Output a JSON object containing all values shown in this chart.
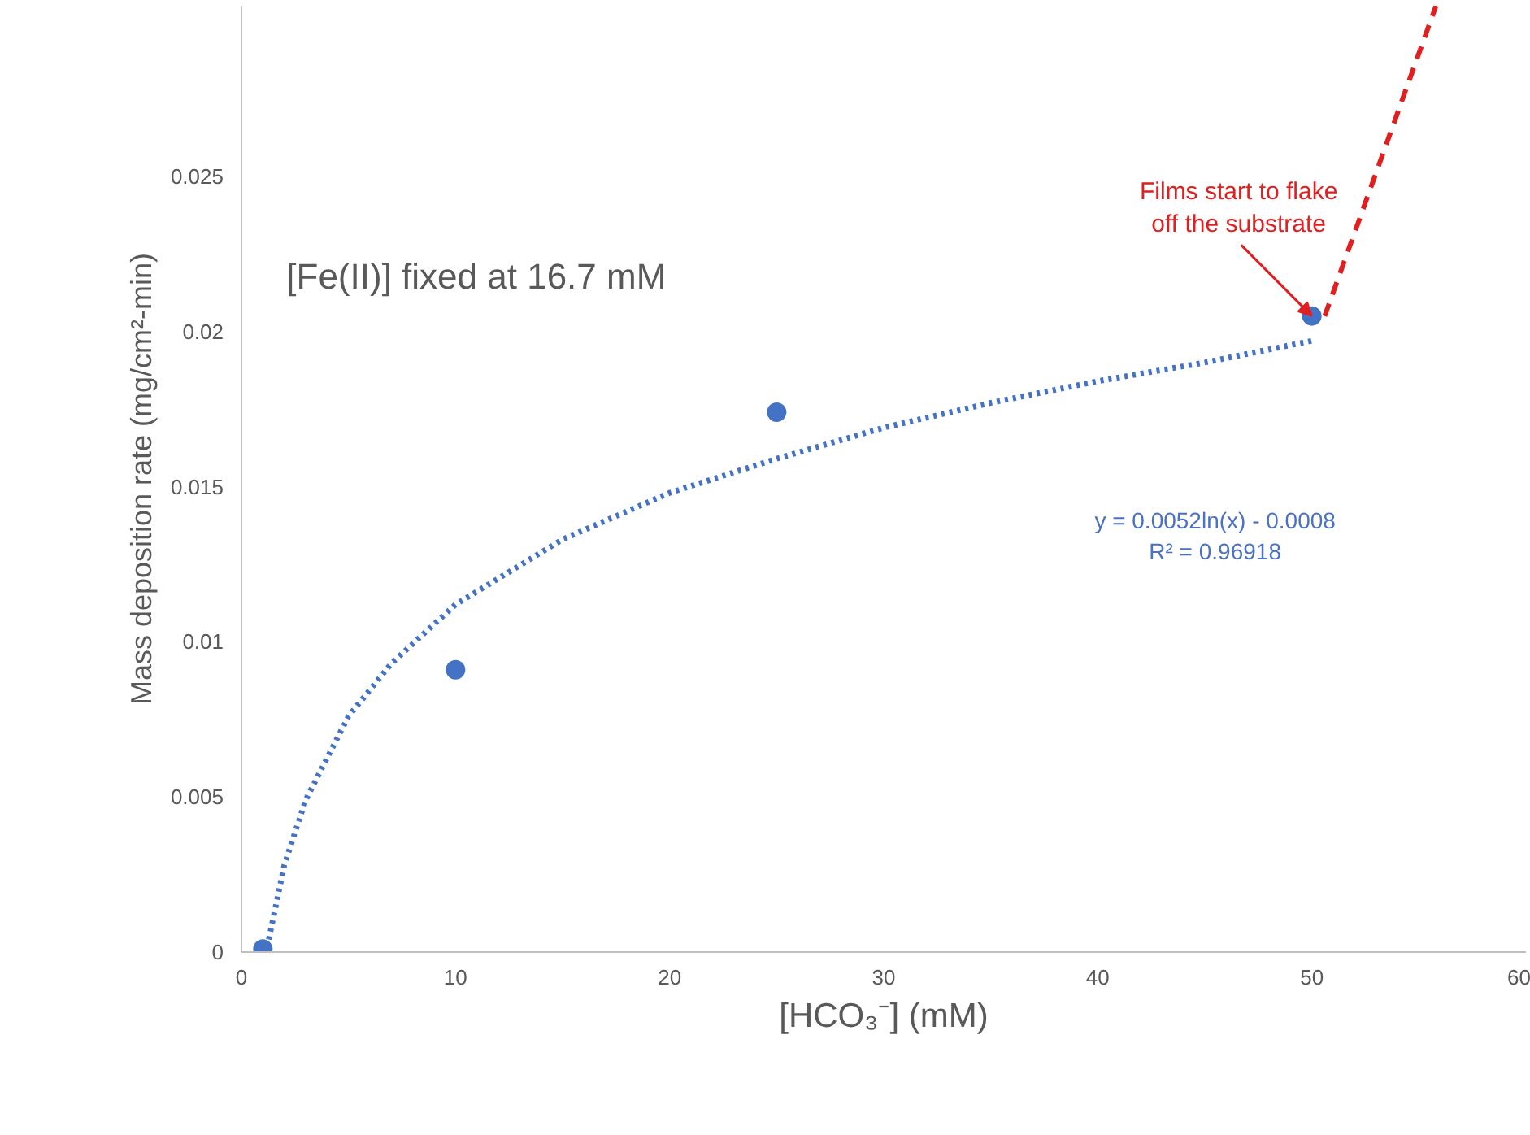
{
  "chart_data": {
    "type": "scatter",
    "xlabel": "[HCO₃⁻] (mM)",
    "ylabel": "Mass deposition rate (mg/cm²-min)",
    "xlim": [
      0,
      60
    ],
    "xticks": [
      0,
      10,
      20,
      30,
      40,
      50,
      60
    ],
    "ylim": [
      0,
      0.0305
    ],
    "yticks": [
      0,
      0.005,
      0.01,
      0.015,
      0.02,
      0.025
    ],
    "grid": false,
    "series": [
      {
        "color": "#4472c4",
        "marker": "circle",
        "x": [
          1,
          10,
          25,
          50
        ],
        "values": [
          0.0001,
          0.0091,
          0.0174,
          0.0205
        ]
      },
      {
        "type": "line",
        "color": "#4472c4",
        "line_style": "dotted",
        "x": [
          1.2,
          2,
          3,
          5,
          7,
          10,
          15,
          20,
          25,
          30,
          35,
          40,
          45,
          50
        ],
        "values": [
          0.00015,
          0.0028,
          0.0049,
          0.0076,
          0.0093,
          0.0112,
          0.0133,
          0.0148,
          0.0159,
          0.0169,
          0.0177,
          0.0184,
          0.019,
          0.0197
        ]
      },
      {
        "type": "line",
        "color": "#e02020",
        "line_style": "dashed",
        "x": [
          50.6,
          55.8
        ],
        "values": [
          0.0205,
          0.0305
        ]
      }
    ],
    "annotations": [
      "[Fe(II)] fixed at 16.7 mM",
      {
        "text": "Films start to flake\noff the substrate",
        "x": 50,
        "y": 0.0205
      },
      "y = 0.0052ln(x) - 0.0008\nR² = 0.96918"
    ]
  }
}
